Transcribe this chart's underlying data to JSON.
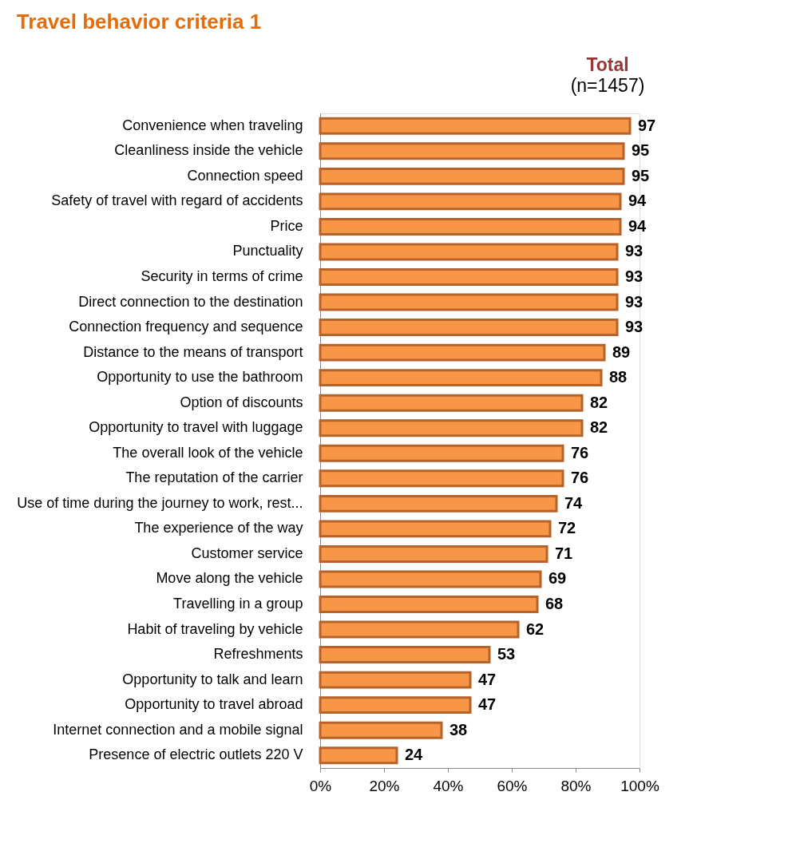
{
  "chart_data": {
    "type": "bar",
    "orientation": "horizontal",
    "title": "Travel behavior criteria 1",
    "subtitle": "Total",
    "annotations": [
      "(n=1457)"
    ],
    "categories": [
      "Convenience when traveling",
      "Cleanliness inside the vehicle",
      "Connection speed",
      "Safety of travel with regard of accidents",
      "Price",
      "Punctuality",
      "Security in terms of crime",
      "Direct connection to the destination",
      "Connection frequency  and sequence",
      "Distance to the means of transport",
      "Opportunity to use the bathroom",
      "Option of discounts",
      "Opportunity to travel with luggage",
      "The overall look of the vehicle",
      "The reputation of the carrier",
      "Use of time during the journey to work, rest...",
      "The experience of the way",
      "Customer service",
      "Move along the vehicle",
      "Travelling in a group",
      "Habit of traveling by vehicle",
      "Refreshments",
      "Opportunity to talk and learn",
      "Opportunity to travel abroad",
      "Internet connection and a  mobile signal",
      "Presence of electric outlets 220 V"
    ],
    "values": [
      97,
      95,
      95,
      94,
      94,
      93,
      93,
      93,
      93,
      89,
      88,
      82,
      82,
      76,
      76,
      74,
      72,
      71,
      69,
      68,
      62,
      53,
      47,
      47,
      38,
      24
    ],
    "color": "#f79646",
    "data_labels": true,
    "grid": false,
    "xlim": [
      0,
      100
    ],
    "xticks": [
      {
        "value": 0,
        "label": "0%"
      },
      {
        "value": 20,
        "label": "20%"
      },
      {
        "value": 40,
        "label": "40%"
      },
      {
        "value": 60,
        "label": "60%"
      },
      {
        "value": 80,
        "label": "80%"
      },
      {
        "value": 100,
        "label": "100%"
      }
    ]
  }
}
